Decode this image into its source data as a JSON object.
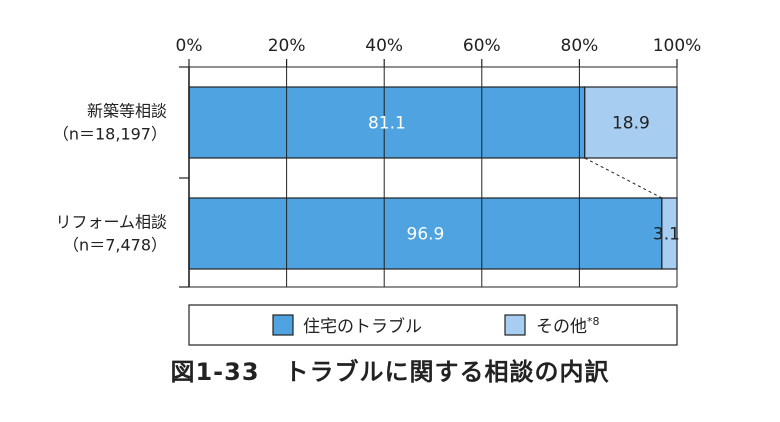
{
  "chart_data": {
    "type": "bar",
    "orientation": "horizontal",
    "stacked": true,
    "percent": true,
    "xlim": [
      0,
      100
    ],
    "x_ticks": [
      "0%",
      "20%",
      "40%",
      "60%",
      "80%",
      "100%"
    ],
    "x_tick_values": [
      0,
      20,
      40,
      60,
      80,
      100
    ],
    "categories": [
      {
        "name": "新築等相談",
        "n": "（n＝18,197）"
      },
      {
        "name": "リフォーム相談",
        "n": "（n＝7,478）"
      }
    ],
    "series": [
      {
        "name": "住宅のトラブル",
        "values": [
          81.1,
          96.9
        ],
        "labels": [
          "81.1",
          "96.9"
        ],
        "color": "#4ea3e0"
      },
      {
        "name": "その他",
        "name_sup": "*8",
        "values": [
          18.9,
          3.1
        ],
        "labels": [
          "18.9",
          "3.1"
        ],
        "color": "#a7cdf0"
      }
    ],
    "legend_placement": "bottom",
    "grid": true,
    "title": "図1-33　トラブルに関する相談の内訳"
  }
}
